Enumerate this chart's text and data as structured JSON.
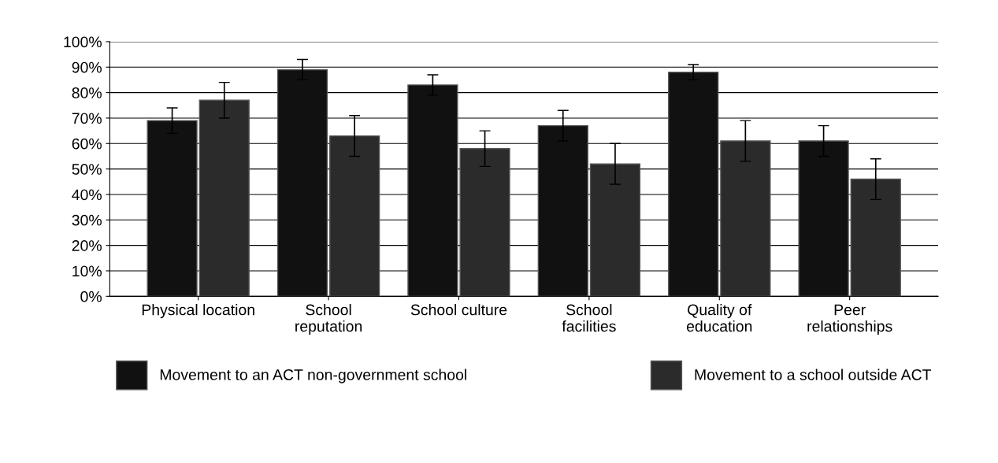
{
  "chart_data": {
    "type": "bar",
    "categories": [
      "Physical location",
      "School\nreputation",
      "School culture",
      "School\nfacilities",
      "Quality of\neducation",
      "Peer\nrelationships"
    ],
    "series": [
      {
        "name": "Movement to an ACT non-government school",
        "color": "#111111",
        "values": [
          69,
          89,
          83,
          67,
          88,
          61
        ],
        "errors": [
          5,
          4,
          4,
          6,
          3,
          6
        ]
      },
      {
        "name": "Movement to a school outside ACT",
        "color": "#2b2b2b",
        "values": [
          77,
          63,
          58,
          52,
          61,
          46
        ],
        "errors": [
          7,
          8,
          7,
          8,
          8,
          8
        ]
      }
    ],
    "ylim": [
      0,
      100
    ],
    "yticks": [
      {
        "value": 0,
        "label": "0%"
      },
      {
        "value": 10,
        "label": "10%"
      },
      {
        "value": 20,
        "label": "20%"
      },
      {
        "value": 30,
        "label": "30%"
      },
      {
        "value": 40,
        "label": "40%"
      },
      {
        "value": 50,
        "label": "50%"
      },
      {
        "value": 60,
        "label": "60%"
      },
      {
        "value": 70,
        "label": "70%"
      },
      {
        "value": 80,
        "label": "80%"
      },
      {
        "value": 90,
        "label": "90%"
      },
      {
        "value": 100,
        "label": "100%"
      }
    ],
    "grid": "y",
    "legend": "bottom"
  }
}
